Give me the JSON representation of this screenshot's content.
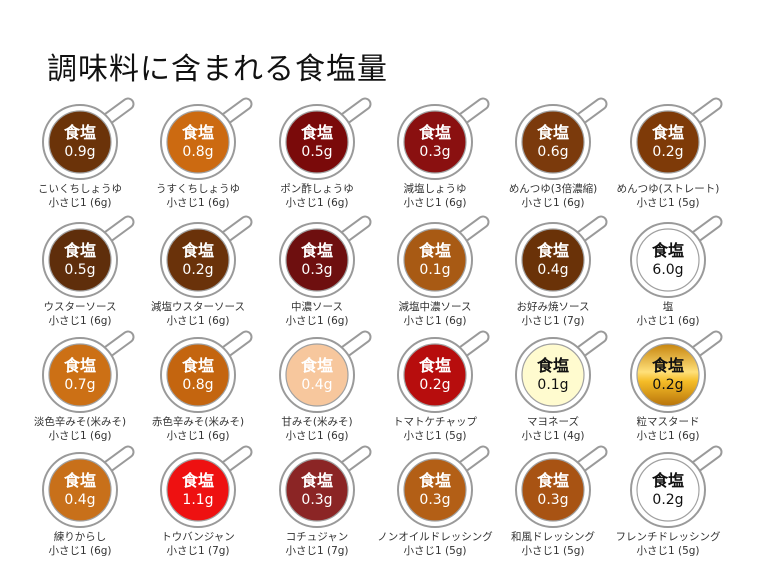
{
  "title": "調味料に含まれる食塩量",
  "label": "食塩",
  "items": [
    {
      "name": "こいくちしょうゆ",
      "measure": "小さじ1 (6g)",
      "salt": "0.9g",
      "color": "#6b3309"
    },
    {
      "name": "うすくちしょうゆ",
      "measure": "小さじ1 (6g)",
      "salt": "0.8g",
      "color": "#cc6a11"
    },
    {
      "name": "ポン酢しょうゆ",
      "measure": "小さじ1 (6g)",
      "salt": "0.5g",
      "color": "#7a0a0a"
    },
    {
      "name": "減塩しょうゆ",
      "measure": "小さじ1 (6g)",
      "salt": "0.3g",
      "color": "#8a1010"
    },
    {
      "name": "めんつゆ(3倍濃縮)",
      "measure": "小さじ1 (6g)",
      "salt": "0.6g",
      "color": "#7b3a0c"
    },
    {
      "name": "めんつゆ(ストレート)",
      "measure": "小さじ1 (5g)",
      "salt": "0.2g",
      "color": "#7e3a08"
    },
    {
      "name": "ウスターソース",
      "measure": "小さじ1 (6g)",
      "salt": "0.5g",
      "color": "#5f2e0b"
    },
    {
      "name": "減塩ウスターソース",
      "measure": "小さじ1 (6g)",
      "salt": "0.2g",
      "color": "#6a320a"
    },
    {
      "name": "中濃ソース",
      "measure": "小さじ1 (6g)",
      "salt": "0.3g",
      "color": "#6e0f0f"
    },
    {
      "name": "減塩中濃ソース",
      "measure": "小さじ1 (6g)",
      "salt": "0.1g",
      "color": "#a85a14"
    },
    {
      "name": "お好み焼ソース",
      "measure": "小さじ1 (7g)",
      "salt": "0.4g",
      "color": "#6a3208"
    },
    {
      "name": "塩",
      "measure": "小さじ1 (6g)",
      "salt": "6.0g",
      "color": "#ffffff",
      "dark": true
    },
    {
      "name": "淡色辛みそ(米みそ)",
      "measure": "小さじ1 (6g)",
      "salt": "0.7g",
      "color": "#cc7015"
    },
    {
      "name": "赤色辛みそ(米みそ)",
      "measure": "小さじ1 (6g)",
      "salt": "0.8g",
      "color": "#c4650f"
    },
    {
      "name": "甘みそ(米みそ)",
      "measure": "小さじ1 (6g)",
      "salt": "0.4g",
      "color": "#f7c79d"
    },
    {
      "name": "トマトケチャップ",
      "measure": "小さじ1 (5g)",
      "salt": "0.2g",
      "color": "#b70d0d"
    },
    {
      "name": "マヨネーズ",
      "measure": "小さじ1 (4g)",
      "salt": "0.1g",
      "color": "#fffbcf",
      "dark": true
    },
    {
      "name": "粒マスタード",
      "measure": "小さじ1 (6g)",
      "salt": "0.2g",
      "color": "#e6a416",
      "dark": true,
      "mustard": true
    },
    {
      "name": "練りからし",
      "measure": "小さじ1 (6g)",
      "salt": "0.4g",
      "color": "#c8701a"
    },
    {
      "name": "トウバンジャン",
      "measure": "小さじ1 (7g)",
      "salt": "1.1g",
      "color": "#ee1111"
    },
    {
      "name": "コチュジャン",
      "measure": "小さじ1 (7g)",
      "salt": "0.3g",
      "color": "#8b2525"
    },
    {
      "name": "ノンオイルドレッシング",
      "measure": "小さじ1 (5g)",
      "salt": "0.3g",
      "color": "#b35f16"
    },
    {
      "name": "和風ドレッシング",
      "measure": "小さじ1 (5g)",
      "salt": "0.3g",
      "color": "#a85313"
    },
    {
      "name": "フレンチドレッシング",
      "measure": "小さじ1 (5g)",
      "salt": "0.2g",
      "color": "#ffffff",
      "dark": true
    }
  ]
}
